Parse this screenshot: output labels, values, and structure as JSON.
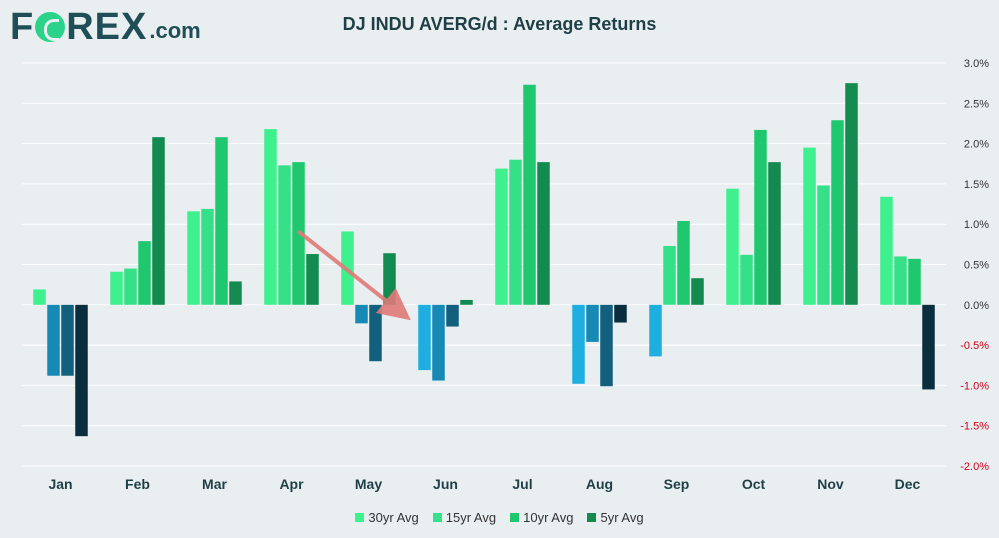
{
  "logo": {
    "pre": "F",
    "post": "REX",
    "suffix": ".com"
  },
  "chart_data": {
    "type": "bar",
    "title": "DJ INDU AVERG/d : Average Returns",
    "categories": [
      "Jan",
      "Feb",
      "Mar",
      "Apr",
      "May",
      "Jun",
      "Jul",
      "Aug",
      "Sep",
      "Oct",
      "Nov",
      "Dec"
    ],
    "series": [
      {
        "name": "30yr Avg",
        "pos_color": "#3ef08e",
        "neg_color": "#1eaee0",
        "values": [
          0.19,
          0.41,
          1.16,
          2.18,
          0.91,
          -0.81,
          1.69,
          -0.98,
          -0.64,
          1.44,
          1.95,
          1.34
        ]
      },
      {
        "name": "15yr Avg",
        "pos_color": "#35e088",
        "neg_color": "#1789b5",
        "values": [
          -0.88,
          0.45,
          1.19,
          1.73,
          -0.23,
          -0.94,
          1.8,
          -0.46,
          0.73,
          0.62,
          1.48,
          0.6
        ]
      },
      {
        "name": "10yr Avg",
        "pos_color": "#1fc86f",
        "neg_color": "#125f7e",
        "values": [
          -0.88,
          0.79,
          2.08,
          1.77,
          -0.7,
          -0.27,
          2.73,
          -1.01,
          1.04,
          2.17,
          2.29,
          0.57
        ]
      },
      {
        "name": "5yr Avg",
        "pos_color": "#138a4f",
        "neg_color": "#0b2e3f",
        "values": [
          -1.63,
          2.08,
          0.29,
          0.63,
          0.64,
          0.06,
          1.77,
          -0.22,
          0.33,
          1.77,
          2.75,
          -1.05
        ]
      }
    ],
    "ylim": [
      -2.0,
      3.0
    ],
    "yticks": [
      3.0,
      2.5,
      2.0,
      1.5,
      1.0,
      0.5,
      0.0,
      -0.5,
      -1.0,
      -1.5,
      -2.0
    ],
    "ytick_labels": [
      "3.0%",
      "2.5%",
      "2.0%",
      "1.5%",
      "1.0%",
      "0.5%",
      "0.0%",
      "-0.5%",
      "-1.0%",
      "-1.5%",
      "-2.0%"
    ],
    "negative_tick_color": "#d0021b",
    "grid": true,
    "legend_position": "bottom",
    "annotation": {
      "type": "arrow",
      "from": {
        "x": "Apr",
        "y": 0.9
      },
      "to": {
        "x": "Jun",
        "y": -0.1
      },
      "color": "#e07a78"
    }
  }
}
